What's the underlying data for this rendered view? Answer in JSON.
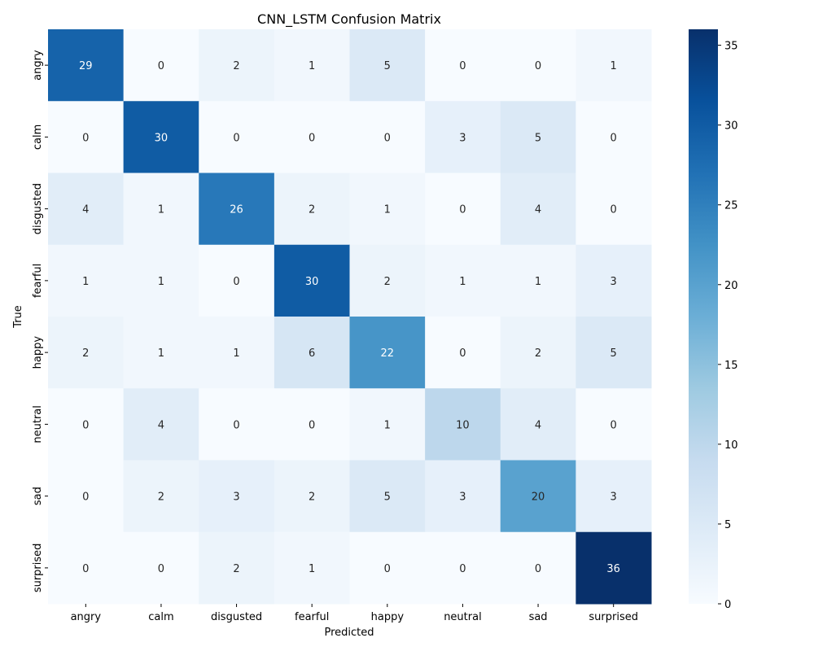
{
  "chart_data": {
    "type": "heatmap",
    "title": "CNN_LSTM Confusion Matrix",
    "xlabel": "Predicted",
    "ylabel": "True",
    "x_categories": [
      "angry",
      "calm",
      "disgusted",
      "fearful",
      "happy",
      "neutral",
      "sad",
      "surprised"
    ],
    "y_categories": [
      "angry",
      "calm",
      "disgusted",
      "fearful",
      "happy",
      "neutral",
      "sad",
      "surprised"
    ],
    "values": [
      [
        29,
        0,
        2,
        1,
        5,
        0,
        0,
        1
      ],
      [
        0,
        30,
        0,
        0,
        0,
        3,
        5,
        0
      ],
      [
        4,
        1,
        26,
        2,
        1,
        0,
        4,
        0
      ],
      [
        1,
        1,
        0,
        30,
        2,
        1,
        1,
        3
      ],
      [
        2,
        1,
        1,
        6,
        22,
        0,
        2,
        5
      ],
      [
        0,
        4,
        0,
        0,
        1,
        10,
        4,
        0
      ],
      [
        0,
        2,
        3,
        2,
        5,
        3,
        20,
        3
      ],
      [
        0,
        0,
        2,
        1,
        0,
        0,
        0,
        36
      ]
    ],
    "colormap": "Blues",
    "colorbar": {
      "vmin": 0,
      "vmax": 36,
      "ticks": [
        0,
        5,
        10,
        15,
        20,
        25,
        30,
        35
      ]
    },
    "cell_annotations": true,
    "grid": false
  }
}
